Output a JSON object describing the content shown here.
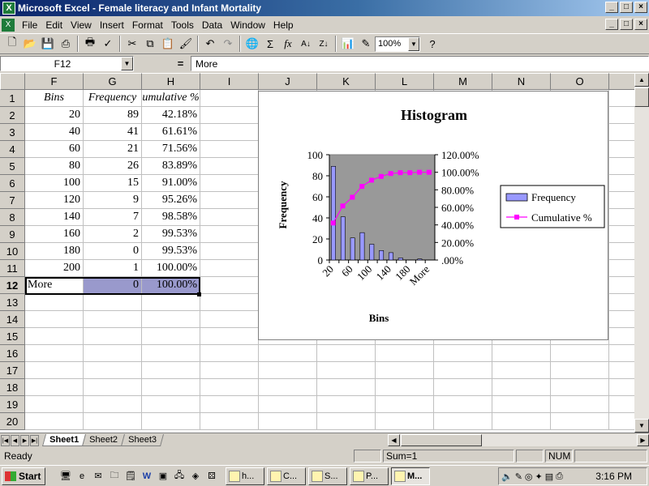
{
  "window": {
    "title": "Microsoft Excel - Female literacy and Infant Mortality",
    "icon": "excel-icon"
  },
  "window_buttons": [
    "_",
    "□",
    "×"
  ],
  "menu": {
    "items": [
      "File",
      "Edit",
      "View",
      "Insert",
      "Format",
      "Tools",
      "Data",
      "Window",
      "Help"
    ]
  },
  "toolbar": {
    "icons": [
      "new-icon",
      "open-icon",
      "save-icon",
      "print-preview-icon",
      "print-icon",
      "spell-check-icon",
      "cut-icon",
      "copy-icon",
      "paste-icon",
      "format-painter-icon",
      "undo-icon",
      "redo-icon",
      "web-icon",
      "autosum-icon",
      "function-icon",
      "sort-ascending-icon",
      "sort-descending-icon",
      "chart-wizard-icon",
      "drawing-icon",
      "help-icon"
    ],
    "zoom": "100%"
  },
  "formula_bar": {
    "name_box": "F12",
    "equals": "=",
    "content": "More"
  },
  "columns": [
    "F",
    "G",
    "H",
    "I",
    "J",
    "K",
    "L",
    "M",
    "N",
    "O"
  ],
  "rows": [
    "1",
    "2",
    "3",
    "4",
    "5",
    "6",
    "7",
    "8",
    "9",
    "10",
    "11",
    "12",
    "13",
    "14",
    "15",
    "16",
    "17",
    "18",
    "19",
    "20"
  ],
  "selected_row": "12",
  "cells": {
    "headers": [
      "Bins",
      "Frequency",
      "umulative %"
    ],
    "data": [
      [
        "20",
        "89",
        "42.18%"
      ],
      [
        "40",
        "41",
        "61.61%"
      ],
      [
        "60",
        "21",
        "71.56%"
      ],
      [
        "80",
        "26",
        "83.89%"
      ],
      [
        "100",
        "15",
        "91.00%"
      ],
      [
        "120",
        "9",
        "95.26%"
      ],
      [
        "140",
        "7",
        "98.58%"
      ],
      [
        "160",
        "2",
        "99.53%"
      ],
      [
        "180",
        "0",
        "99.53%"
      ],
      [
        "200",
        "1",
        "100.00%"
      ],
      [
        "More",
        "0",
        "100.00%"
      ]
    ]
  },
  "chart_data": {
    "type": "bar",
    "title": "Histogram",
    "xlabel": "Bins",
    "ylabel": "Frequency",
    "categories": [
      "20",
      "40",
      "60",
      "80",
      "100",
      "120",
      "140",
      "160",
      "180",
      "200",
      "More"
    ],
    "x_tick_labels": [
      "20",
      "60",
      "100",
      "140",
      "180",
      "More"
    ],
    "series": [
      {
        "name": "Frequency",
        "type": "bar",
        "axis": "left",
        "color": "#9999ff",
        "values": [
          89,
          41,
          21,
          26,
          15,
          9,
          7,
          2,
          0,
          1,
          0
        ]
      },
      {
        "name": "Cumulative %",
        "type": "line",
        "axis": "right",
        "color": "#ff00ff",
        "values": [
          42.18,
          61.61,
          71.56,
          83.89,
          91.0,
          95.26,
          98.58,
          99.53,
          99.53,
          100.0,
          100.0
        ]
      }
    ],
    "ylim": [
      0,
      100
    ],
    "y_ticks": [
      "100",
      "80",
      "60",
      "40",
      "20",
      "0"
    ],
    "y2lim": [
      0,
      120
    ],
    "y2_ticks": [
      "120.00%",
      "100.00%",
      "80.00%",
      "60.00%",
      "40.00%",
      "20.00%",
      ".00%"
    ],
    "plot_background": "#999999",
    "legend_position": "right",
    "grid": false
  },
  "sheet_tabs": {
    "tabs": [
      "Sheet1",
      "Sheet2",
      "Sheet3"
    ],
    "active": "Sheet1"
  },
  "status": {
    "ready": "Ready",
    "sum": "Sum=1",
    "num": "NUM"
  },
  "taskbar": {
    "start": "Start",
    "buttons": [
      "h...",
      "C...",
      "S...",
      "P...",
      "M..."
    ],
    "active_button": "M...",
    "clock": "3:16 PM"
  }
}
